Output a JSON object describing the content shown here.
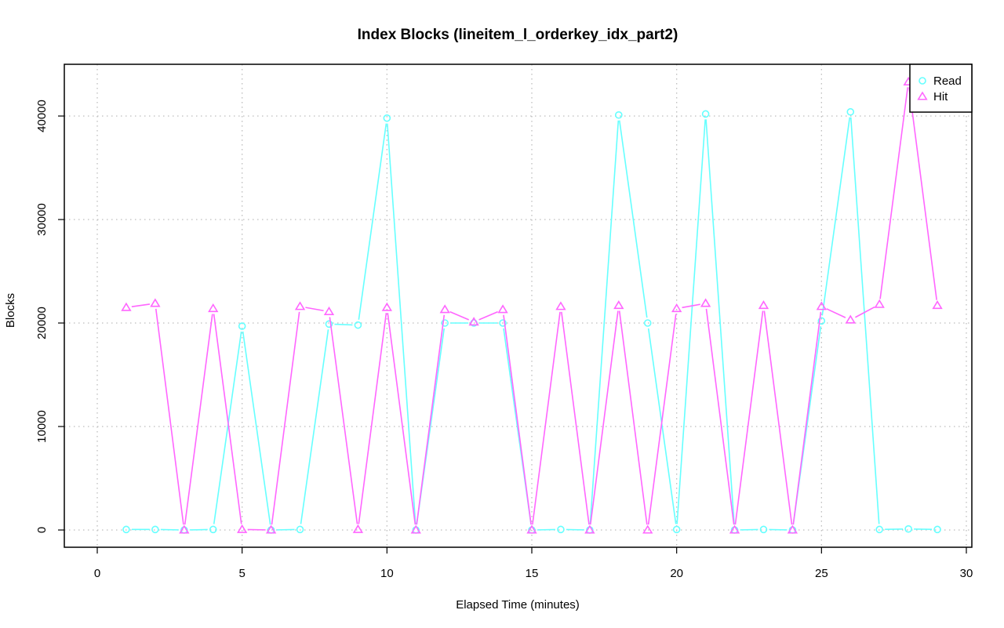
{
  "chart_data": {
    "type": "line",
    "title": "Index Blocks (lineitem_l_orderkey_idx_part2)",
    "xlabel": "Elapsed Time (minutes)",
    "ylabel": "Blocks",
    "xlim": [
      0,
      30
    ],
    "ylim": [
      0,
      43200
    ],
    "xticks": [
      0,
      5,
      10,
      15,
      20,
      25,
      30
    ],
    "yticks": [
      0,
      10000,
      20000,
      30000,
      40000
    ],
    "grid": true,
    "legend_position": "top-right",
    "x": [
      1,
      2,
      3,
      4,
      5,
      6,
      7,
      8,
      9,
      10,
      11,
      12,
      13,
      14,
      15,
      16,
      17,
      18,
      19,
      20,
      21,
      22,
      23,
      24,
      25,
      26,
      27,
      28,
      29
    ],
    "series": [
      {
        "name": "Read",
        "color": "#66ffff",
        "marker": "circle",
        "values": [
          50,
          50,
          0,
          50,
          19700,
          0,
          50,
          19900,
          19800,
          39800,
          0,
          20000,
          20000,
          20000,
          0,
          50,
          0,
          40100,
          20000,
          50,
          40200,
          0,
          50,
          0,
          20200,
          40400,
          50,
          100,
          50
        ]
      },
      {
        "name": "Hit",
        "color": "#ff66ff",
        "marker": "triangle",
        "values": [
          21500,
          21900,
          0,
          21400,
          50,
          0,
          21600,
          21100,
          50,
          21500,
          0,
          21300,
          20100,
          21300,
          0,
          21600,
          0,
          21700,
          0,
          21400,
          21900,
          0,
          21700,
          0,
          21600,
          20300,
          21800,
          43300,
          21700
        ]
      }
    ]
  }
}
